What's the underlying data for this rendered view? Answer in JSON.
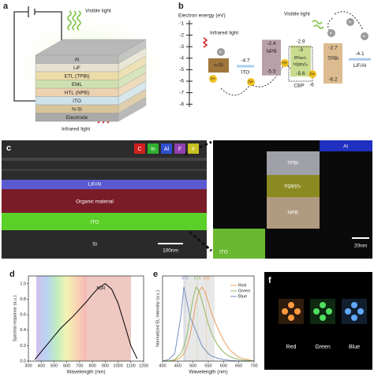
{
  "panel_a": {
    "label": "a",
    "visible_light": "Visible light",
    "infrared_light": "Infrared light",
    "layers": [
      "Al",
      "LiF",
      "ETL (TPBi)",
      "EML",
      "HTL (NPB)",
      "ITO",
      "N-Si",
      "Electrode"
    ],
    "colors": [
      "#b8b8b8",
      "#e6e2d2",
      "#ecdca8",
      "#cfe0b0",
      "#ecd2b0",
      "#cfe2ea",
      "#d8c49a",
      "#a9a9a9"
    ]
  },
  "panel_b": {
    "label": "b",
    "axis_title": "Electron energy (eV)",
    "ticks": [
      -1,
      -2,
      -3,
      -4,
      -5,
      -6,
      -7,
      -8
    ],
    "infrared_light": "Infrared light",
    "visible_light": "Visible light",
    "electron": "e-",
    "hole": "h+",
    "n_si": "n-Si",
    "ito": {
      "name": "ITO",
      "level": -4.7
    },
    "npb": {
      "name": "NPB",
      "lumo": -2.4,
      "homo": -5.5
    },
    "ir": {
      "name_top": "8%w.t.",
      "name_bottom": "Ir(ppy)₃",
      "lumo": -2.9,
      "homo": -5.6
    },
    "cbp": {
      "name": "CBP",
      "lumo": -3.0,
      "homo": -6.0
    },
    "tpbi": {
      "name": "TPBi",
      "lumo": -2.7,
      "homo": -6.2
    },
    "lifal": {
      "name": "LiF/Al",
      "level": -4.1
    }
  },
  "panel_c": {
    "label": "c",
    "elements": [
      "C",
      "In",
      "Al",
      "F",
      "Ir"
    ],
    "element_colors": [
      "#d02020",
      "#30b030",
      "#3050d0",
      "#9040b0",
      "#c8c020"
    ],
    "left_layers": [
      "LiF/Al",
      "Organic material",
      "ITO",
      "Si"
    ],
    "left_scale": "100nm",
    "right_layers": [
      "Al",
      "TPBi",
      "Ir(ppy)₃",
      "NPB",
      "ITO"
    ],
    "right_scale": "20nm"
  },
  "panel_d": {
    "label": "d",
    "type": "line",
    "x_label": "Wavelength (nm)",
    "y_label": "Spectral response (a.u.)",
    "annotation": "NIR",
    "x": [
      350,
      400,
      450,
      500,
      550,
      600,
      650,
      700,
      750,
      800,
      850,
      900,
      950,
      1000,
      1050,
      1100,
      1150
    ],
    "values": [
      0.02,
      0.12,
      0.22,
      0.32,
      0.42,
      0.5,
      0.58,
      0.67,
      0.76,
      0.86,
      0.95,
      1.0,
      0.93,
      0.75,
      0.48,
      0.2,
      0.03
    ],
    "color": "#000000",
    "xlim": [
      300,
      1200
    ],
    "xticks": [
      300,
      400,
      500,
      600,
      700,
      800,
      900,
      1000,
      1100,
      1200
    ],
    "ylim": [
      0,
      1.1
    ],
    "yticks": [
      {
        "value": 0,
        "label": "0.0"
      },
      0.2,
      0.4,
      0.6,
      0.8,
      {
        "value": 1,
        "label": "1.0"
      }
    ]
  },
  "panel_e": {
    "label": "e",
    "type": "line",
    "x_label": "Wavelength (nm)",
    "y_label": "Normalized EL intensity (a.u.)",
    "x": [
      400,
      420,
      440,
      460,
      470,
      480,
      490,
      500,
      510,
      520,
      530,
      540,
      550,
      560,
      580,
      600,
      620,
      650,
      700
    ],
    "series": [
      {
        "name": "Red",
        "color": "#e8a060",
        "values": [
          0,
          0,
          0.01,
          0.05,
          0.1,
          0.2,
          0.35,
          0.55,
          0.8,
          0.95,
          1.0,
          0.92,
          0.8,
          0.65,
          0.45,
          0.28,
          0.15,
          0.05,
          0
        ]
      },
      {
        "name": "Green",
        "color": "#90b860",
        "values": [
          0,
          0,
          0.02,
          0.1,
          0.2,
          0.35,
          0.6,
          0.85,
          1.0,
          0.95,
          0.8,
          0.65,
          0.5,
          0.38,
          0.22,
          0.12,
          0.06,
          0.02,
          0
        ]
      },
      {
        "name": "Blue",
        "color": "#7890c0",
        "values": [
          0,
          0.02,
          0.1,
          0.6,
          1.0,
          0.8,
          0.6,
          0.5,
          0.4,
          0.3,
          0.2,
          0.15,
          0.1,
          0.07,
          0.04,
          0.02,
          0.01,
          0,
          0
        ]
      }
    ],
    "peak_labels": [
      473,
      514,
      544
    ],
    "xlim": [
      400,
      700
    ],
    "xticks": [
      400,
      450,
      500,
      550,
      600,
      650,
      700
    ],
    "ylim": [
      0,
      1.15
    ],
    "legend": "upper right"
  },
  "panel_f": {
    "label": "f",
    "names": [
      "Red",
      "Green",
      "Blue"
    ],
    "colors": [
      "#ff9a40",
      "#50e060",
      "#60a8ff"
    ]
  }
}
